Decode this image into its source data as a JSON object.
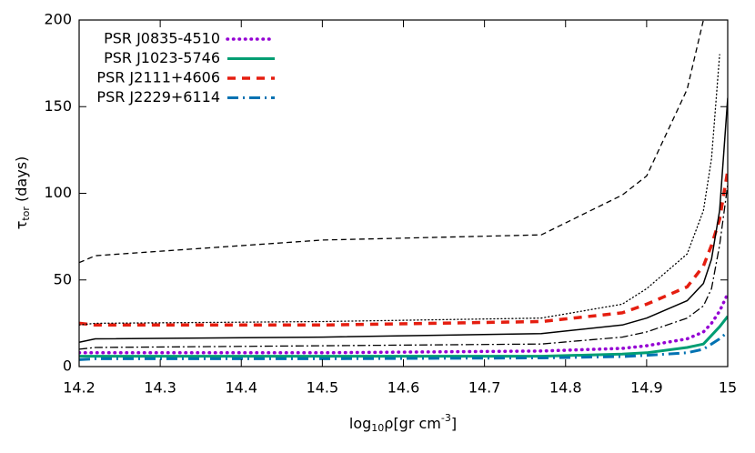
{
  "chart_data": {
    "type": "line",
    "x_label": [
      "log",
      "10",
      "ρ[gr cm",
      "-3",
      "]"
    ],
    "y_label": [
      "τ",
      "tor",
      " (days)"
    ],
    "x": [
      14.2,
      14.22,
      14.5,
      14.77,
      14.87,
      14.9,
      14.95,
      14.97,
      14.98,
      14.99,
      15
    ],
    "series": [
      {
        "name": "PSR J0835-4510",
        "color": "#9400d3",
        "style": "dotted",
        "width": 3.5,
        "values": [
          8,
          8,
          8,
          9,
          10.5,
          12,
          16,
          20,
          25,
          32,
          42
        ]
      },
      {
        "name": "PSR J1023-5746",
        "color": "#009e73",
        "style": "solid",
        "width": 3,
        "values": [
          6,
          6,
          6,
          6,
          7.2,
          8,
          11,
          13,
          18,
          23,
          29
        ]
      },
      {
        "name": "PSR J2111+4606",
        "color": "#e51e10",
        "style": "dashed",
        "width": 3.5,
        "values": [
          25,
          24,
          24,
          26,
          31,
          36,
          46,
          58,
          70,
          85,
          113
        ]
      },
      {
        "name": "PSR J2229+6114",
        "color": "#0072b2",
        "style": "dashdot",
        "width": 3,
        "values": [
          4,
          4.5,
          4.5,
          5,
          5.8,
          6.5,
          8,
          10,
          13,
          16,
          20
        ]
      },
      {
        "color": "#000000",
        "style": "dashed",
        "width": 1.3,
        "values": [
          60,
          64,
          73,
          76,
          99,
          110,
          160,
          200,
          null,
          null,
          null
        ]
      },
      {
        "color": "#000000",
        "style": "dotted",
        "width": 1.3,
        "values": [
          24,
          25,
          26,
          28,
          36,
          45,
          65,
          90,
          120,
          180,
          null
        ]
      },
      {
        "color": "#000000",
        "style": "solid",
        "width": 1.5,
        "values": [
          14,
          16,
          17,
          19,
          24,
          28,
          38,
          48,
          62,
          90,
          155
        ]
      },
      {
        "color": "#000000",
        "style": "dashdot",
        "width": 1.3,
        "values": [
          10,
          11,
          12,
          13,
          17,
          20,
          28,
          35,
          45,
          70,
          105
        ]
      }
    ],
    "xlim": [
      14.2,
      15
    ],
    "ylim": [
      0,
      200
    ],
    "xticks": [
      14.2,
      14.3,
      14.4,
      14.5,
      14.6,
      14.7,
      14.8,
      14.9,
      15
    ],
    "yticks": [
      0,
      50,
      100,
      150,
      200
    ],
    "grid": false,
    "legend": "upper left"
  }
}
